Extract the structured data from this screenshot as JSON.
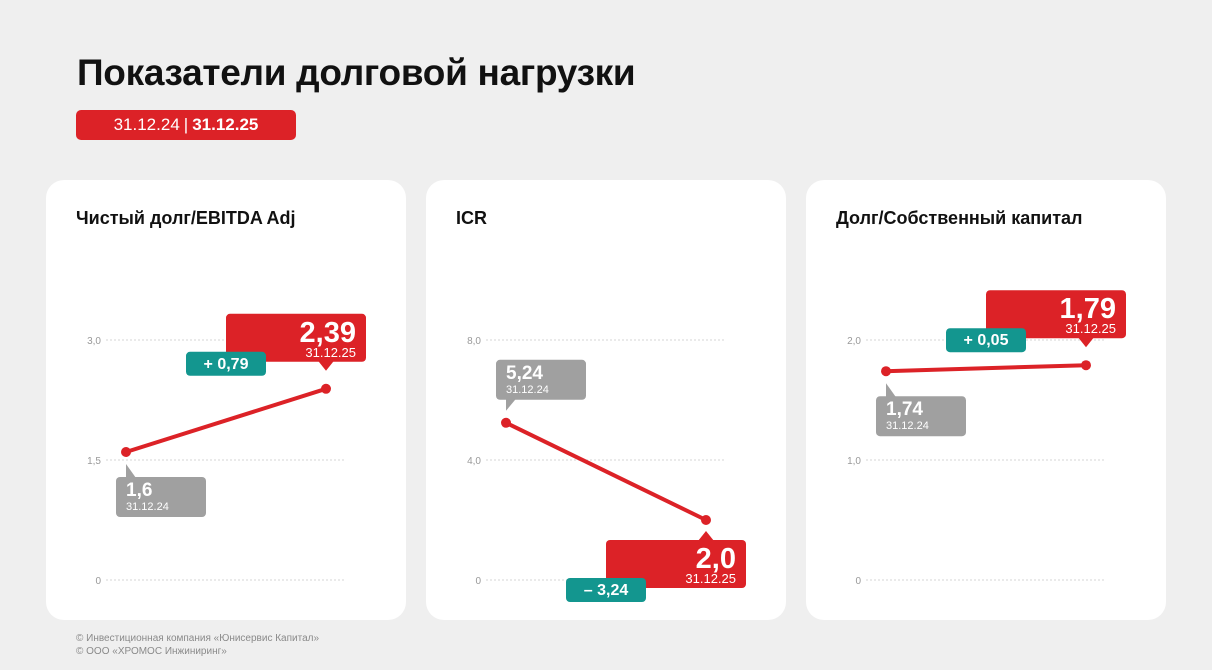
{
  "title": "Показатели долговой нагрузки",
  "period": {
    "from": "31.12.24",
    "separator": "|",
    "to": "31.12.25"
  },
  "colors": {
    "accent": "#dc2227",
    "delta": "#13968f",
    "previous": "#a0a0a0",
    "grid": "#d6d6d6"
  },
  "chart_data": [
    {
      "type": "line",
      "title": "Чистый долг/EBITDA Adj",
      "ylim": [
        0,
        3.0
      ],
      "yticks": [
        "0",
        "1,5",
        "3,0"
      ],
      "ytick_values": [
        0,
        1.5,
        3.0
      ],
      "points": [
        {
          "date": "31.12.24",
          "value": 1.6,
          "label": "1,6"
        },
        {
          "date": "31.12.25",
          "value": 2.39,
          "label": "2,39"
        }
      ],
      "delta": "+ 0,79"
    },
    {
      "type": "line",
      "title": "ICR",
      "ylim": [
        0,
        8.0
      ],
      "yticks": [
        "0",
        "4,0",
        "8,0"
      ],
      "ytick_values": [
        0,
        4.0,
        8.0
      ],
      "points": [
        {
          "date": "31.12.24",
          "value": 5.24,
          "label": "5,24"
        },
        {
          "date": "31.12.25",
          "value": 2.0,
          "label": "2,0"
        }
      ],
      "delta": "– 3,24"
    },
    {
      "type": "line",
      "title": "Долг/Собственный капитал",
      "ylim": [
        0,
        2.0
      ],
      "yticks": [
        "0",
        "1,0",
        "2,0"
      ],
      "ytick_values": [
        0,
        1.0,
        2.0
      ],
      "points": [
        {
          "date": "31.12.24",
          "value": 1.74,
          "label": "1,74"
        },
        {
          "date": "31.12.25",
          "value": 1.79,
          "label": "1,79"
        }
      ],
      "delta": "+ 0,05"
    }
  ],
  "footer": [
    "© Инвестиционная компания «Юнисервис Капитал»",
    "© ООО «ХРОМОС Инжиниринг»"
  ]
}
